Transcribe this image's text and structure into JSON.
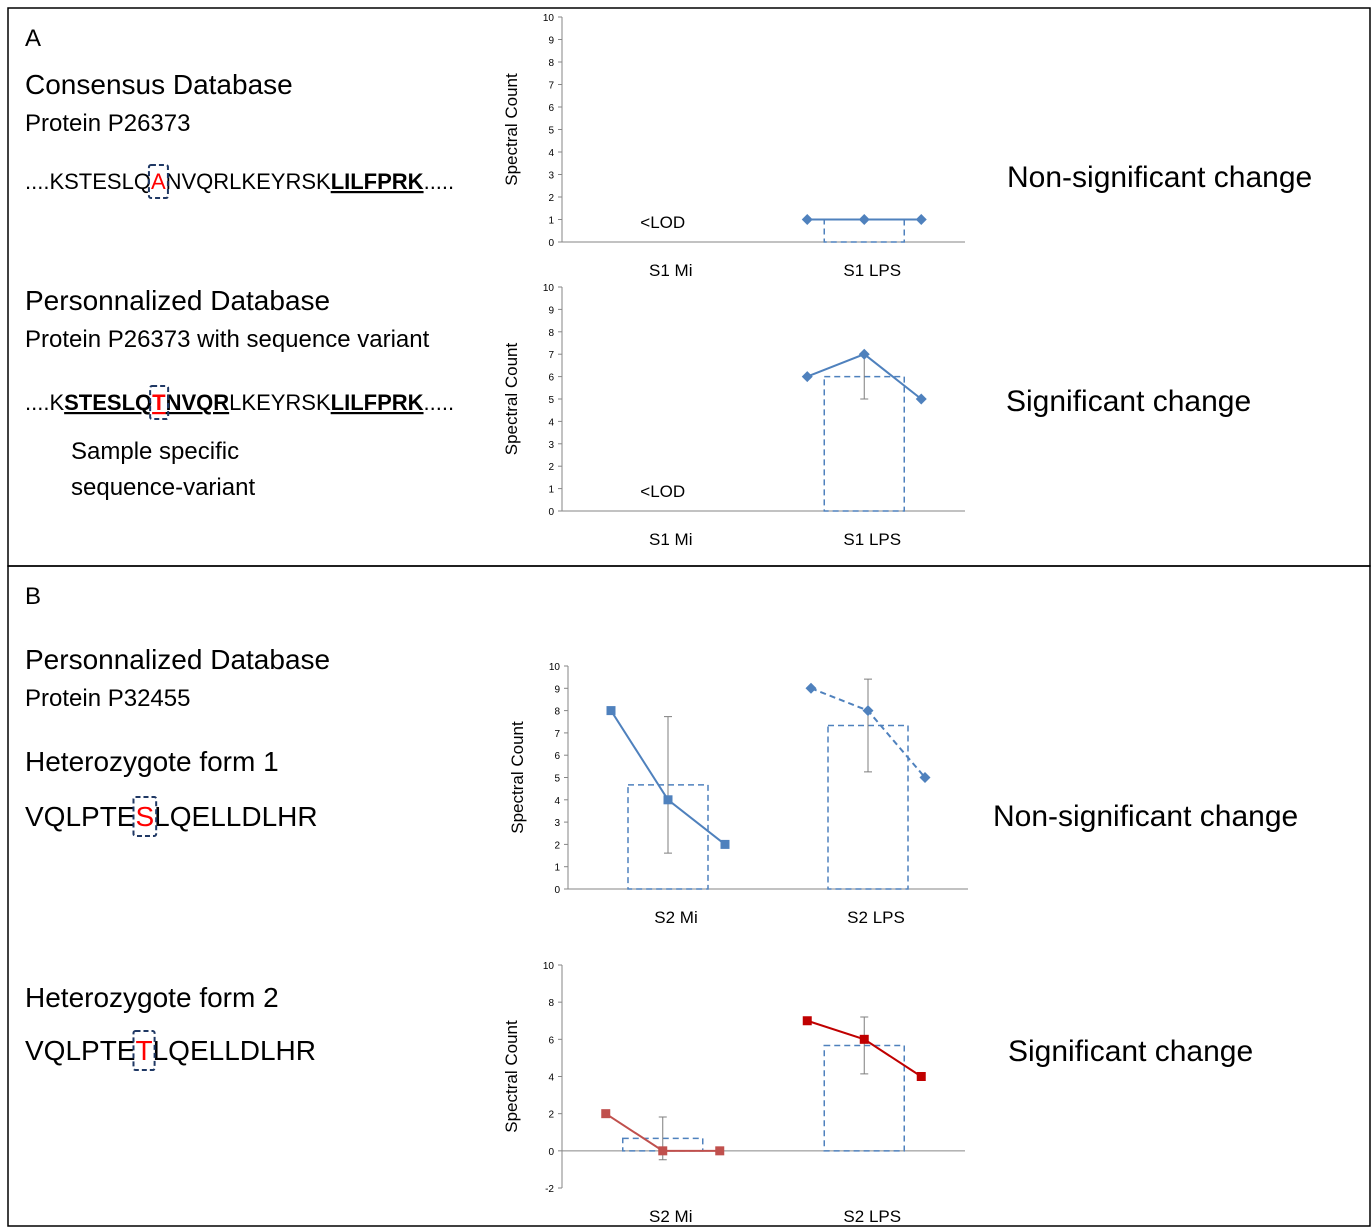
{
  "panel_a": {
    "label": "A",
    "consensus": {
      "title": "Consensus Database",
      "protein": "Protein P26373",
      "sequence": [
        "....KSTESLQ",
        "A",
        "NVQRLKEYRSK",
        "LILFPRK",
        "....."
      ],
      "result": "Non-significant change"
    },
    "personalized": {
      "title": "Personnalized Database",
      "protein": "Protein P26373 with sequence variant",
      "sequence": [
        "....K",
        "STESLQ",
        "T",
        "NVQR",
        "LKEYRSK",
        "LILFPRK",
        "....."
      ],
      "note": [
        "Sample specific",
        "sequence-variant"
      ],
      "result": "Significant change"
    }
  },
  "panel_b": {
    "label": "B",
    "title": "Personnalized Database",
    "protein": "Protein P32455",
    "form1": {
      "title": "Heterozygote form 1",
      "sequence": [
        "VQLPTE",
        "S",
        "LQELLDLHR"
      ],
      "result": "Non-significant change"
    },
    "form2": {
      "title": "Heterozygote form 2",
      "sequence": [
        "VQLPTE",
        "T",
        "LQELLDLHR"
      ],
      "result": "Significant change"
    }
  },
  "chart_data": [
    {
      "type": "combo",
      "ylabel": "Spectral Count",
      "categories": [
        "S1 Mi",
        "S1 LPS"
      ],
      "ylim": [
        0,
        10
      ],
      "yticks": [
        0,
        1,
        2,
        3,
        4,
        5,
        6,
        7,
        8,
        9,
        10
      ],
      "annotation": "<LOD",
      "bars": {
        "color": "#4f81bd",
        "values": [
          null,
          1
        ],
        "errors": [
          null,
          null
        ]
      },
      "replicates": [
        {
          "color": "#4f81bd",
          "marker": "diamond",
          "dashed": false,
          "values": [
            null,
            null,
            null
          ]
        },
        {
          "color": "#4f81bd",
          "marker": "diamond",
          "dashed": false,
          "values": [
            1,
            1,
            1
          ]
        }
      ]
    },
    {
      "type": "combo",
      "ylabel": "Spectral Count",
      "categories": [
        "S1 Mi",
        "S1 LPS"
      ],
      "ylim": [
        0,
        10
      ],
      "yticks": [
        0,
        1,
        2,
        3,
        4,
        5,
        6,
        7,
        8,
        9,
        10
      ],
      "annotation": "<LOD",
      "bars": {
        "color": "#4f81bd",
        "values": [
          null,
          6
        ],
        "errors": [
          null,
          1
        ]
      },
      "replicates": [
        {
          "color": "#4f81bd",
          "marker": "diamond",
          "dashed": false,
          "values": [
            null,
            null,
            null
          ]
        },
        {
          "color": "#4f81bd",
          "marker": "diamond",
          "dashed": false,
          "values": [
            6,
            7,
            5
          ]
        }
      ]
    },
    {
      "type": "combo",
      "ylabel": "Spectral Count",
      "categories": [
        "S2 Mi",
        "S2 LPS"
      ],
      "ylim": [
        0,
        10
      ],
      "yticks": [
        0,
        1,
        2,
        3,
        4,
        5,
        6,
        7,
        8,
        9,
        10
      ],
      "bars": {
        "color": "#4f81bd",
        "values": [
          4.67,
          7.33
        ],
        "errors": [
          3.06,
          2.08
        ]
      },
      "replicates": [
        {
          "color": "#4f81bd",
          "marker": "square",
          "dashed": false,
          "values": [
            8,
            4,
            2
          ]
        },
        {
          "color": "#4f81bd",
          "marker": "diamond",
          "dashed": true,
          "values": [
            9,
            8,
            5
          ]
        }
      ]
    },
    {
      "type": "combo",
      "ylabel": "Spectral Count",
      "categories": [
        "S2 Mi",
        "S2 LPS"
      ],
      "ylim": [
        -2,
        10
      ],
      "yticks": [
        -2,
        0,
        2,
        4,
        6,
        8,
        10
      ],
      "bars": {
        "color": "#4f81bd",
        "values": [
          0.67,
          5.67
        ],
        "errors": [
          1.15,
          1.53
        ]
      },
      "replicates": [
        {
          "color": "#c0504d",
          "marker": "square",
          "dashed": false,
          "values": [
            2,
            0,
            0
          ]
        },
        {
          "color": "#c00000",
          "marker": "square",
          "dashed": false,
          "values": [
            7,
            6,
            4
          ]
        }
      ]
    }
  ]
}
